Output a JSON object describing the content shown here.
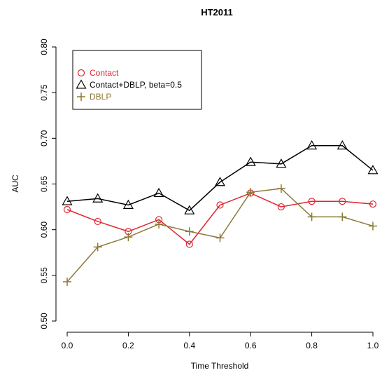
{
  "chart_data": {
    "type": "line",
    "title": "HT2011",
    "xlabel": "Time Threshold",
    "ylabel": "AUC",
    "xlim": [
      0.0,
      1.0
    ],
    "ylim": [
      0.5,
      0.8
    ],
    "x_ticks": [
      "0.0",
      "0.2",
      "0.4",
      "0.6",
      "0.8",
      "1.0"
    ],
    "y_ticks": [
      "0.50",
      "0.55",
      "0.60",
      "0.65",
      "0.70",
      "0.75",
      "0.80"
    ],
    "grid": false,
    "legend_position": "top-left",
    "x": [
      0.0,
      0.1,
      0.2,
      0.3,
      0.4,
      0.5,
      0.6,
      0.7,
      0.8,
      0.9,
      1.0
    ],
    "series": [
      {
        "name": "Contact",
        "color": "#e0262e",
        "marker": "circle",
        "values": [
          0.622,
          0.609,
          0.598,
          0.611,
          0.584,
          0.627,
          0.64,
          0.625,
          0.631,
          0.631,
          0.628
        ]
      },
      {
        "name": "Contact+DBLP, beta=0.5",
        "color": "#000000",
        "marker": "triangle",
        "values": [
          0.631,
          0.634,
          0.627,
          0.64,
          0.621,
          0.652,
          0.674,
          0.672,
          0.692,
          0.692,
          0.665
        ]
      },
      {
        "name": "DBLP",
        "color": "#8b7a37",
        "marker": "plus",
        "values": [
          0.543,
          0.581,
          0.592,
          0.606,
          0.598,
          0.591,
          0.641,
          0.645,
          0.614,
          0.614,
          0.604
        ]
      }
    ]
  }
}
